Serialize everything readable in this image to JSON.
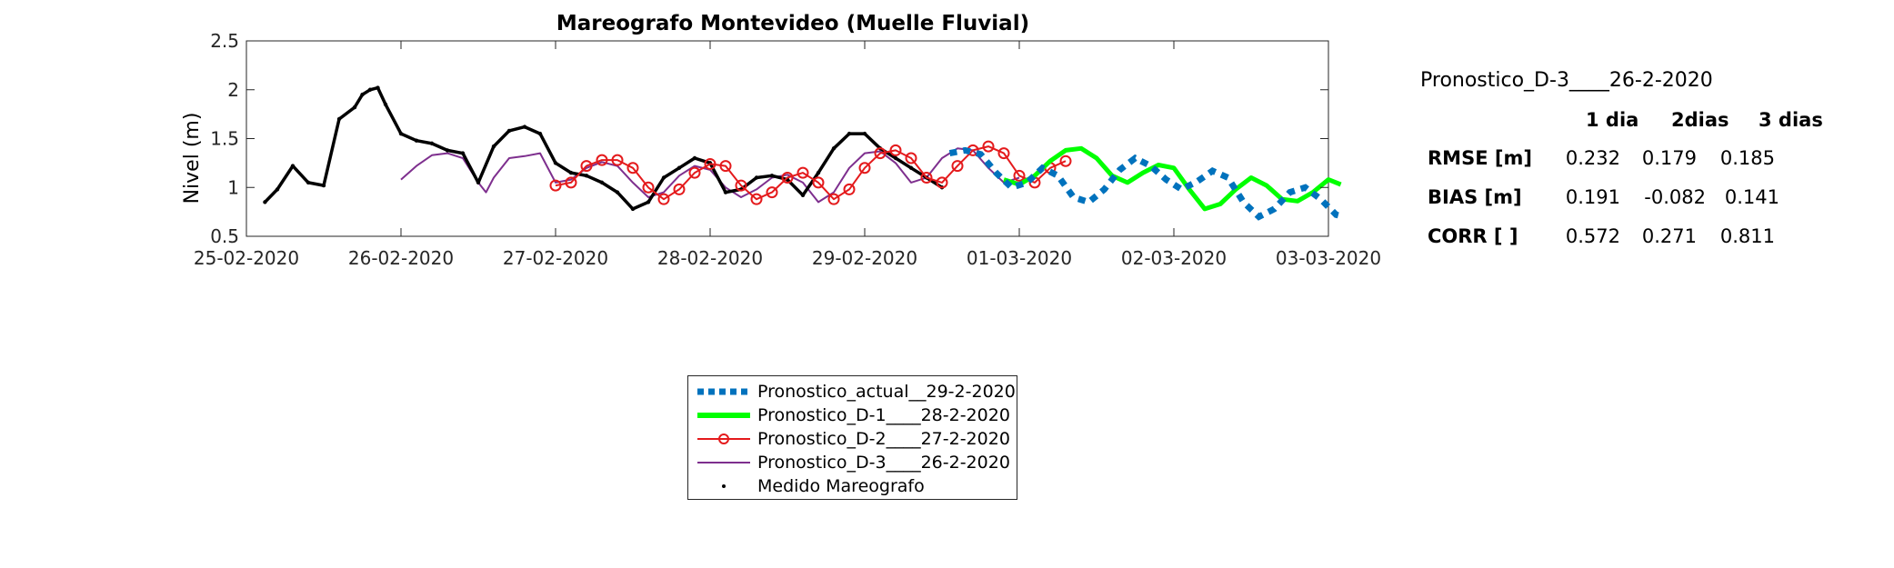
{
  "chart_data": {
    "type": "line",
    "title": "Mareografo Montevideo (Muelle Fluvial)",
    "xlabel": "",
    "ylabel": "Nivel (m)",
    "x_unit": "day",
    "xlim": [
      "25-02-2020",
      "03-03-2020"
    ],
    "ylim": [
      0.5,
      2.5
    ],
    "x_ticks": [
      "25-02-2020",
      "26-02-2020",
      "27-02-2020",
      "28-02-2020",
      "29-02-2020",
      "01-03-2020",
      "02-03-2020",
      "03-03-2020"
    ],
    "y_ticks": [
      0.5,
      1,
      1.5,
      2,
      2.5
    ],
    "y_tick_labels": [
      "0.5",
      "1",
      "1.5",
      "2",
      "2.5"
    ],
    "grid": false,
    "legend_position": "bottom-center",
    "series": [
      {
        "name": "Pronostico_actual__29-2-2020",
        "color": "#0072BD",
        "style": "dotted-thick",
        "x": [
          29.55,
          29.65,
          29.75,
          29.85,
          29.95,
          30.05,
          30.15,
          30.25,
          30.35,
          30.45,
          30.55,
          30.65,
          30.75,
          30.85,
          30.95,
          31.05,
          31.15,
          31.25,
          31.35,
          31.45,
          31.55,
          31.65,
          31.75,
          31.85,
          31.95,
          32.05,
          32.1
        ],
        "y": [
          1.35,
          1.38,
          1.34,
          1.15,
          1.0,
          1.05,
          1.2,
          1.12,
          0.9,
          0.85,
          0.98,
          1.18,
          1.3,
          1.22,
          1.08,
          0.98,
          1.06,
          1.17,
          1.1,
          0.85,
          0.7,
          0.78,
          0.95,
          1.0,
          0.88,
          0.72,
          0.7
        ],
        "x_shift_note": ""
      },
      {
        "name": "Pronostico_D-1____28-2-2020",
        "color": "#00FF00",
        "style": "solid-thick",
        "x": [
          29.9,
          30.0,
          30.1,
          30.2,
          30.3,
          30.4,
          30.5,
          30.6,
          30.7,
          30.8,
          30.9,
          31.0,
          31.1,
          31.2,
          31.3,
          31.4,
          31.5,
          31.6,
          31.7,
          31.8,
          31.9,
          32.0,
          32.08
        ],
        "y": [
          1.08,
          1.03,
          1.12,
          1.27,
          1.38,
          1.4,
          1.3,
          1.12,
          1.05,
          1.15,
          1.23,
          1.2,
          0.98,
          0.78,
          0.83,
          0.98,
          1.1,
          1.02,
          0.88,
          0.86,
          0.95,
          1.08,
          1.03
        ]
      },
      {
        "name": "Pronostico_D-2____27-2-2020",
        "color": "#E41A1C",
        "style": "line-circles",
        "x": [
          27.0,
          27.1,
          27.2,
          27.3,
          27.4,
          27.5,
          27.6,
          27.7,
          27.8,
          27.9,
          28.0,
          28.1,
          28.2,
          28.3,
          28.4,
          28.5,
          28.6,
          28.7,
          28.8,
          28.9,
          29.0,
          29.1,
          29.2,
          29.3,
          29.4,
          29.5,
          29.6,
          29.7,
          29.8,
          29.9,
          30.0,
          30.1,
          30.2,
          30.3
        ],
        "y": [
          1.02,
          1.05,
          1.22,
          1.28,
          1.28,
          1.2,
          1.0,
          0.88,
          0.98,
          1.15,
          1.24,
          1.22,
          1.02,
          0.88,
          0.95,
          1.1,
          1.15,
          1.05,
          0.88,
          0.98,
          1.2,
          1.35,
          1.38,
          1.3,
          1.1,
          1.05,
          1.22,
          1.38,
          1.42,
          1.35,
          1.12,
          1.05,
          1.2,
          1.27
        ]
      },
      {
        "name": "Pronostico_D-3____26-2-2020",
        "color": "#7E2F8E",
        "style": "solid-thin",
        "x": [
          26.0,
          26.1,
          26.2,
          26.3,
          26.4,
          26.5,
          26.55,
          26.6,
          26.7,
          26.8,
          26.9,
          27.0,
          27.1,
          27.2,
          27.3,
          27.4,
          27.5,
          27.6,
          27.7,
          27.8,
          27.9,
          28.0,
          28.1,
          28.2,
          28.3,
          28.4,
          28.5,
          28.6,
          28.7,
          28.8,
          28.9,
          29.0,
          29.1,
          29.2,
          29.3,
          29.4,
          29.5,
          29.6,
          29.7,
          29.8,
          29.9,
          30.0
        ],
        "y": [
          1.08,
          1.22,
          1.33,
          1.35,
          1.3,
          1.05,
          0.95,
          1.1,
          1.3,
          1.32,
          1.35,
          1.05,
          1.08,
          1.2,
          1.26,
          1.22,
          1.05,
          0.9,
          0.95,
          1.12,
          1.22,
          1.18,
          1.0,
          0.9,
          0.98,
          1.1,
          1.13,
          1.05,
          0.85,
          0.95,
          1.2,
          1.35,
          1.37,
          1.25,
          1.05,
          1.1,
          1.3,
          1.4,
          1.38,
          1.2,
          1.05,
          1.1
        ]
      },
      {
        "name": "Medido Mareografo",
        "color": "#000000",
        "style": "points",
        "x": [
          25.12,
          25.2,
          25.3,
          25.4,
          25.5,
          25.6,
          25.7,
          25.75,
          25.8,
          25.85,
          25.9,
          26.0,
          26.1,
          26.2,
          26.3,
          26.4,
          26.5,
          26.6,
          26.7,
          26.8,
          26.9,
          27.0,
          27.1,
          27.2,
          27.3,
          27.4,
          27.5,
          27.6,
          27.7,
          27.8,
          27.9,
          28.0,
          28.1,
          28.2,
          28.3,
          28.4,
          28.5,
          28.6,
          28.7,
          28.8,
          28.9,
          29.0,
          29.1,
          29.2,
          29.3,
          29.4,
          29.5
        ],
        "y": [
          0.85,
          0.98,
          1.22,
          1.05,
          1.02,
          1.7,
          1.82,
          1.95,
          2.0,
          2.02,
          1.85,
          1.55,
          1.48,
          1.45,
          1.38,
          1.35,
          1.05,
          1.42,
          1.58,
          1.62,
          1.55,
          1.25,
          1.15,
          1.12,
          1.05,
          0.95,
          0.78,
          0.85,
          1.1,
          1.2,
          1.3,
          1.25,
          0.95,
          0.98,
          1.1,
          1.12,
          1.08,
          0.92,
          1.15,
          1.4,
          1.55,
          1.55,
          1.4,
          1.3,
          1.2,
          1.1,
          1.0
        ]
      }
    ]
  },
  "stats": {
    "subtitle": "Pronostico_D-3____26-2-2020",
    "headers": [
      "1 dia",
      "2dias",
      "3 dias"
    ],
    "rows": [
      {
        "label": "RMSE [m]",
        "values": [
          "0.232",
          "0.179",
          "0.185"
        ]
      },
      {
        "label": "BIAS [m]",
        "values": [
          "0.191",
          "-0.082",
          "0.141"
        ]
      },
      {
        "label": "CORR [  ]",
        "values": [
          "0.572",
          "0.271",
          "0.811"
        ]
      }
    ]
  }
}
